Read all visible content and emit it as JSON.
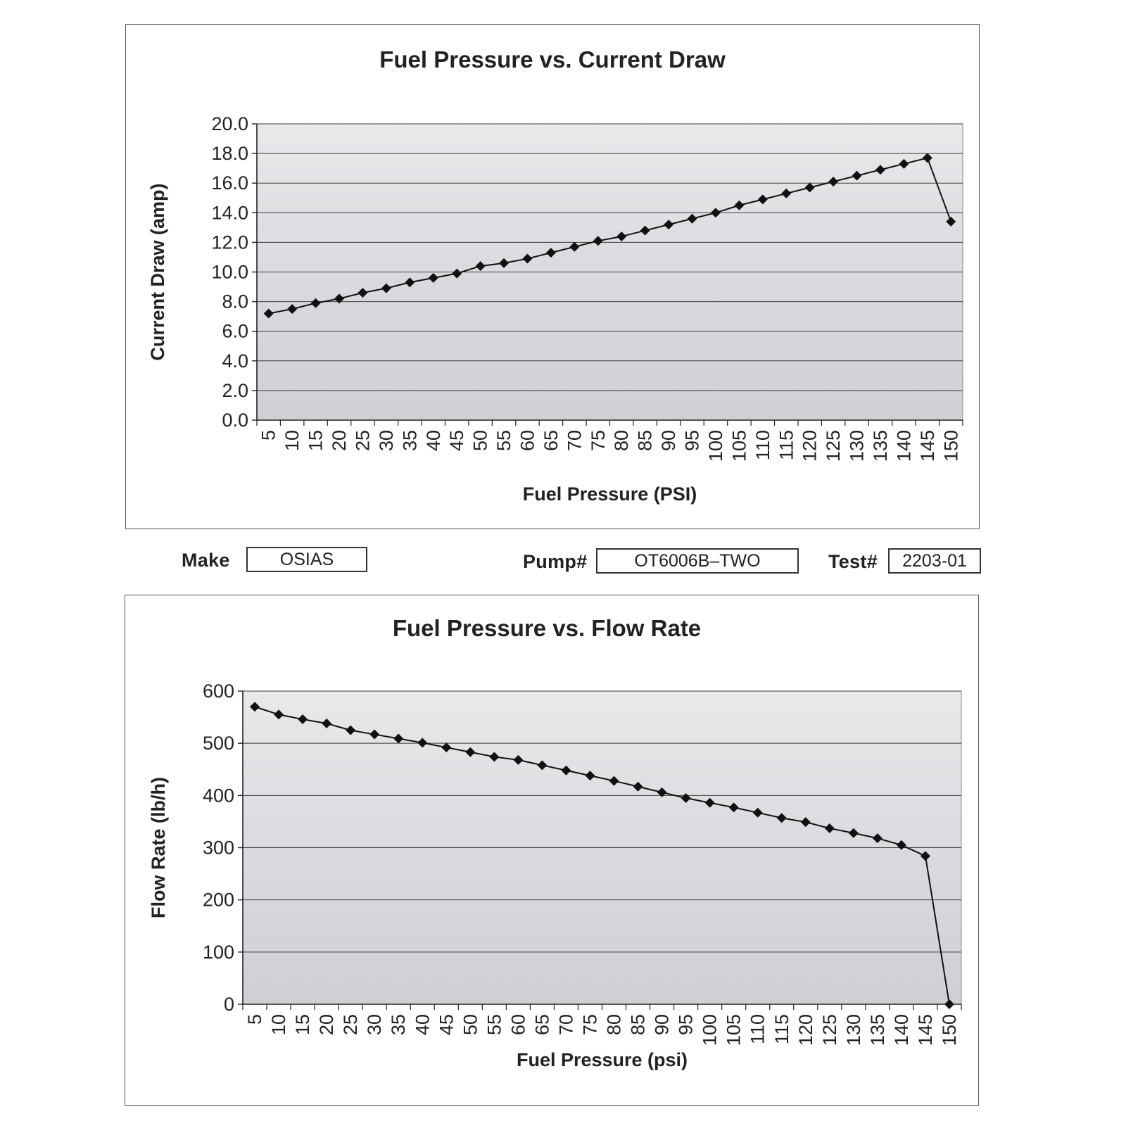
{
  "info": {
    "make_label": "Make",
    "make_value": "OSIAS",
    "pump_label": "Pump#",
    "pump_value": "OT6006B–TWO",
    "test_label": "Test#",
    "test_value": "2203-01"
  },
  "chart_data": [
    {
      "type": "line",
      "title": "Fuel Pressure vs. Current Draw",
      "xlabel": "Fuel Pressure (PSI)",
      "ylabel": "Current Draw (amp)",
      "ylim": [
        0,
        20
      ],
      "ytick_step": 2,
      "ytick_labels": [
        "0.0",
        "2.0",
        "4.0",
        "6.0",
        "8.0",
        "10.0",
        "12.0",
        "14.0",
        "16.0",
        "18.0",
        "20.0"
      ],
      "grid": true,
      "marker": "diamond",
      "categories": [
        "5",
        "10",
        "15",
        "20",
        "25",
        "30",
        "35",
        "40",
        "45",
        "50",
        "55",
        "60",
        "65",
        "70",
        "75",
        "80",
        "85",
        "90",
        "95",
        "100",
        "105",
        "110",
        "115",
        "120",
        "125",
        "130",
        "135",
        "140",
        "145",
        "150"
      ],
      "series": [
        {
          "name": "Current Draw",
          "values": [
            7.2,
            7.5,
            7.9,
            8.2,
            8.6,
            8.9,
            9.3,
            9.6,
            9.9,
            10.4,
            10.6,
            10.9,
            11.3,
            11.7,
            12.1,
            12.4,
            12.8,
            13.2,
            13.6,
            14.0,
            14.5,
            14.9,
            15.3,
            15.7,
            16.1,
            16.5,
            16.9,
            17.3,
            17.7,
            13.4
          ]
        }
      ]
    },
    {
      "type": "line",
      "title": "Fuel Pressure vs. Flow Rate",
      "xlabel": "Fuel Pressure (psi)",
      "ylabel": "Flow Rate (lb/h)",
      "ylim": [
        0,
        600
      ],
      "ytick_step": 100,
      "ytick_labels": [
        "0",
        "100",
        "200",
        "300",
        "400",
        "500",
        "600"
      ],
      "grid": true,
      "marker": "diamond",
      "categories": [
        "5",
        "10",
        "15",
        "20",
        "25",
        "30",
        "35",
        "40",
        "45",
        "50",
        "55",
        "60",
        "65",
        "70",
        "75",
        "80",
        "85",
        "90",
        "95",
        "100",
        "105",
        "110",
        "115",
        "120",
        "125",
        "130",
        "135",
        "140",
        "145",
        "150"
      ],
      "series": [
        {
          "name": "Flow Rate",
          "values": [
            570,
            555,
            546,
            538,
            525,
            517,
            509,
            501,
            492,
            483,
            474,
            468,
            458,
            448,
            438,
            428,
            417,
            406,
            395,
            386,
            377,
            367,
            357,
            349,
            337,
            328,
            318,
            305,
            284,
            0
          ]
        }
      ]
    }
  ]
}
